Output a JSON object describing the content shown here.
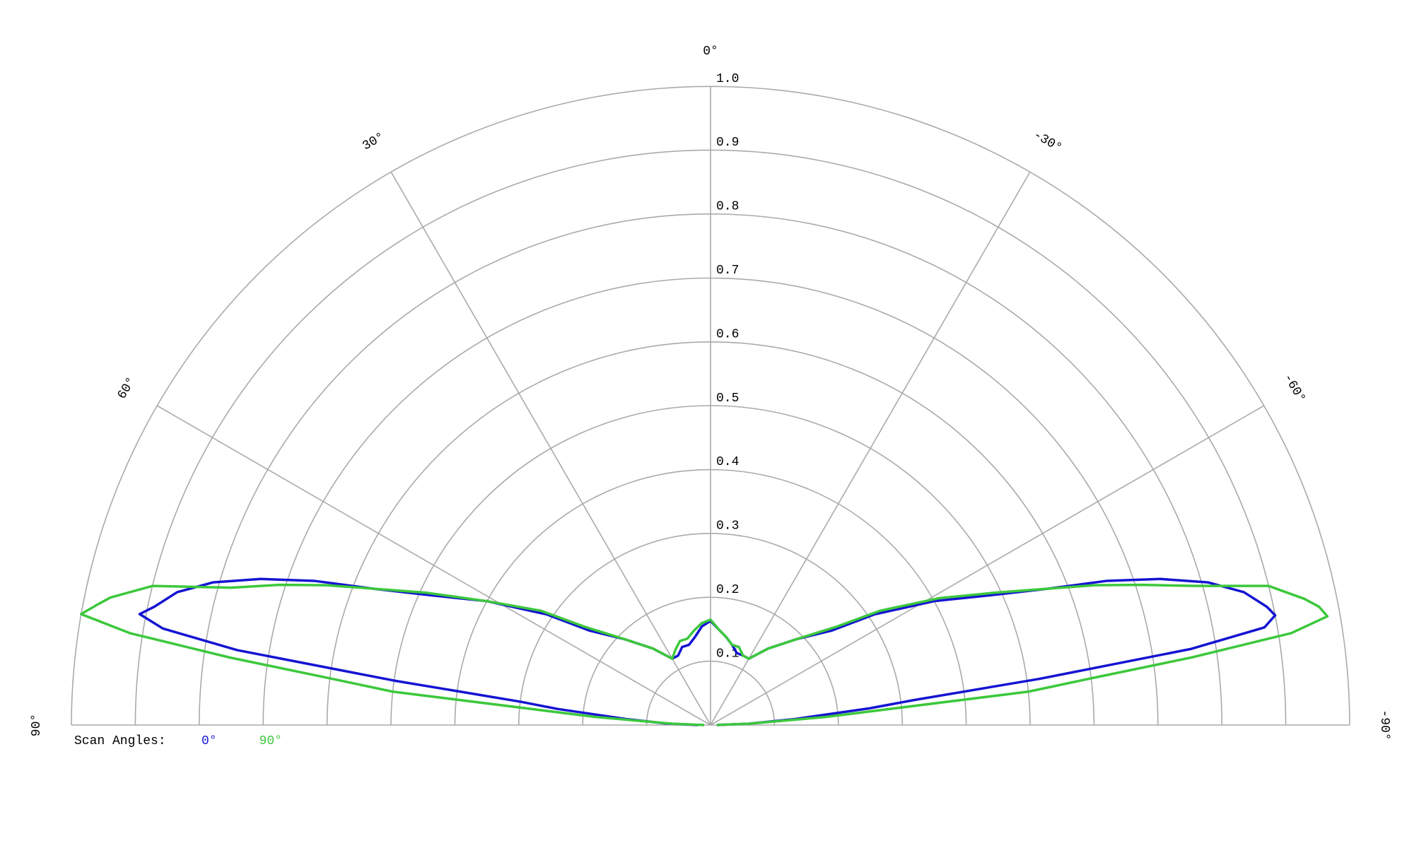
{
  "chart_data": {
    "type": "polar",
    "legend_title": "Scan Angles:",
    "x": [
      90,
      88,
      86,
      84,
      83,
      82,
      81,
      80,
      79,
      78,
      76,
      74,
      72,
      70,
      68,
      65,
      61,
      56,
      52,
      45,
      37,
      30,
      25,
      20,
      15,
      10,
      5,
      0,
      -5,
      -10,
      -15,
      -20,
      -25,
      -30,
      -37,
      -45,
      -52,
      -56,
      -61,
      -65,
      -68,
      -70,
      -72,
      -74,
      -76,
      -78,
      -79,
      -80,
      -81,
      -82,
      -83,
      -84,
      -86,
      -88,
      -90
    ],
    "series": [
      {
        "name": "0°",
        "color": "#1414d2",
        "values": [
          0.02,
          0.07,
          0.13,
          0.24,
          0.3,
          0.5,
          0.75,
          0.87,
          0.91,
          0.89,
          0.86,
          0.81,
          0.74,
          0.66,
          0.57,
          0.48,
          0.4,
          0.31,
          0.24,
          0.19,
          0.15,
          0.12,
          0.12,
          0.13,
          0.13,
          0.14,
          0.155,
          0.163,
          0.15,
          0.14,
          0.13,
          0.12,
          0.12,
          0.12,
          0.15,
          0.19,
          0.24,
          0.31,
          0.4,
          0.48,
          0.57,
          0.66,
          0.74,
          0.81,
          0.86,
          0.89,
          0.9,
          0.88,
          0.76,
          0.52,
          0.32,
          0.25,
          0.13,
          0.06,
          0.01
        ]
      },
      {
        "name": "90°",
        "color": "#3cc83c",
        "values": [
          0.01,
          0.06,
          0.18,
          0.5,
          0.6,
          0.76,
          0.92,
          1.0,
          0.98,
          0.96,
          0.9,
          0.78,
          0.71,
          0.64,
          0.57,
          0.49,
          0.4,
          0.32,
          0.25,
          0.19,
          0.15,
          0.12,
          0.13,
          0.14,
          0.14,
          0.15,
          0.16,
          0.165,
          0.15,
          0.14,
          0.13,
          0.13,
          0.12,
          0.12,
          0.15,
          0.19,
          0.25,
          0.32,
          0.41,
          0.49,
          0.57,
          0.64,
          0.71,
          0.79,
          0.9,
          0.95,
          0.97,
          0.98,
          0.92,
          0.76,
          0.6,
          0.5,
          0.18,
          0.06,
          0.01
        ]
      }
    ],
    "rlim": [
      0,
      1
    ],
    "rticks": [
      0.1,
      0.2,
      0.3,
      0.4,
      0.5,
      0.6,
      0.7,
      0.8,
      0.9,
      {
        "value": 1,
        "label": "1.0"
      }
    ],
    "thetalim": [
      -90,
      90
    ],
    "thetaticks": [
      {
        "value": 90,
        "label": "90°"
      },
      {
        "value": 60,
        "label": "60°"
      },
      {
        "value": 30,
        "label": "30°"
      },
      {
        "value": 0,
        "label": "0°"
      },
      {
        "value": -30,
        "label": "-30°"
      },
      {
        "value": -60,
        "label": "-60°"
      },
      {
        "value": -90,
        "label": "-90°"
      }
    ],
    "grid": true
  }
}
